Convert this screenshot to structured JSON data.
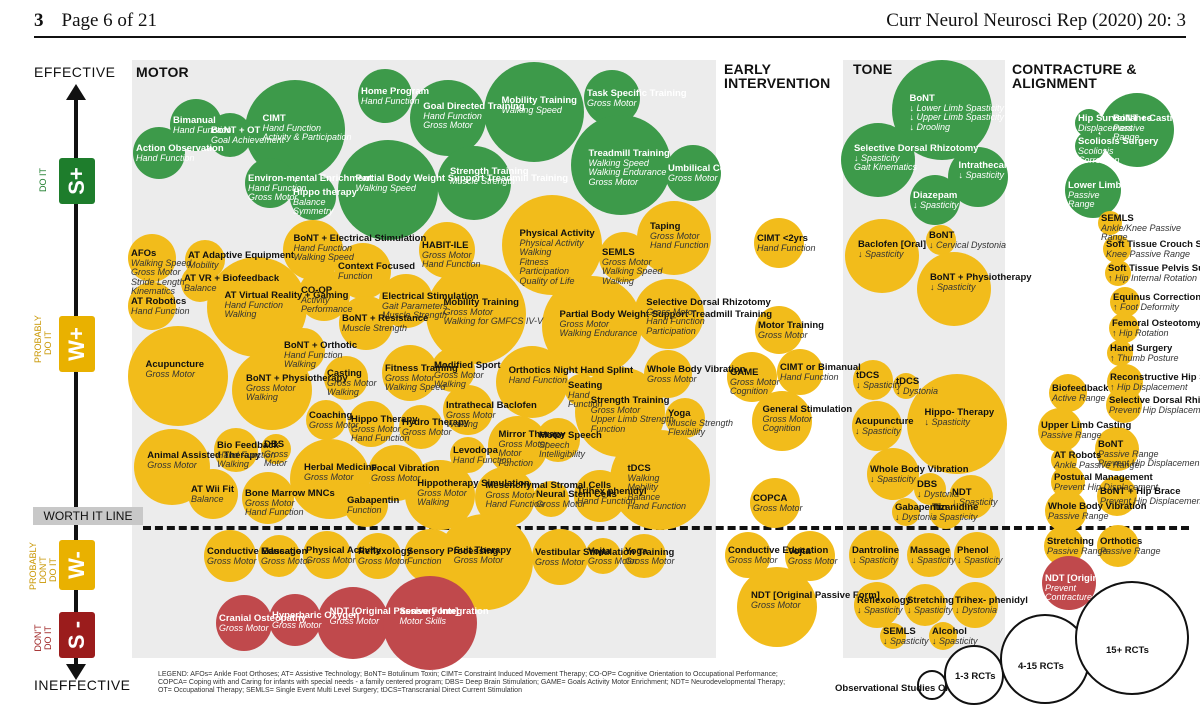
{
  "header": {
    "page_num": "3",
    "page_label": "Page 6 of 21",
    "journal": "Curr Neurol Neurosci Rep (2020) 20: 3"
  },
  "axis": {
    "top": "EFFECTIVE",
    "bottom": "INEFFECTIVE"
  },
  "ratings": [
    {
      "badge": "S+",
      "cat": "DO IT",
      "color": "#1e7d2c"
    },
    {
      "badge": "W+",
      "cat": "PROBABLY DO IT",
      "color": "#e9b100"
    },
    {
      "badge": "W-",
      "cat": "PROBABLY DON'T DO IT",
      "color": "#e9b100"
    },
    {
      "badge": "S -",
      "cat": "DON'T DO IT",
      "color": "#9b1c1c"
    }
  ],
  "worth_line": "WORTH IT LINE",
  "sections": {
    "motor": "MOTOR",
    "early": "EARLY INTERVENTION",
    "tone": "TONE",
    "contracture": "CONTRACTURE & ALIGNMENT"
  },
  "size_legend": {
    "obs": "Observational Studies ONLY",
    "r1": "1-3 RCTs",
    "r2": "4-15 RCTs",
    "r3": "15+ RCTs"
  },
  "legend": "LEGEND: AFOs= Ankle Foot Orthoses; AT= Assistive Technology; BoNT= Botulinum Toxin; CIMT= Constraint Induced Movement Therapy; CO-OP= Cognitive Orientation to Occupational Performance; COPCA= Coping with and Caring for infants with special needs - a family centered program; DBS= Deep Brain Stimulation; GAME= Goals Activity Motor Enrichment; NDT= Neurodevelopmental Therapy; OT= Occupational Therapy; SEMLS= Single Event Multi Level Surgery; tDCS=Transcranial Direct Current Stimulation",
  "interventions": [
    {
      "title": "Action Observation",
      "sub": "Hand Function",
      "color": "g"
    },
    {
      "title": "Bimanual",
      "sub": "Hand Function",
      "color": "g"
    },
    {
      "title": "BoNT + OT",
      "sub": "Goal Achievement",
      "color": "g"
    },
    {
      "title": "CIMT",
      "sub": "Hand Function\nActivity & Participation",
      "color": "g"
    },
    {
      "title": "Home Program",
      "sub": "Hand Function",
      "color": "g"
    },
    {
      "title": "Goal Directed Training",
      "sub": "Hand Function\nGross Motor",
      "color": "g"
    },
    {
      "title": "Mobility Training",
      "sub": "Walking Speed",
      "color": "g"
    },
    {
      "title": "Task Specific Training",
      "sub": "Gross Motor",
      "color": "g"
    },
    {
      "title": "Environ-mental Enrichment",
      "sub": "Hand Function\nGross Motor",
      "color": "g"
    },
    {
      "title": "Hippo therapy",
      "sub": "Balance\nSymmetry",
      "color": "g"
    },
    {
      "title": "Partial Body Weight Support Treadmill Training",
      "sub": "Walking Speed",
      "color": "g"
    },
    {
      "title": "Strength Training",
      "sub": "Muscle Strength",
      "color": "g"
    },
    {
      "title": "Treadmill Training",
      "sub": "Walking Speed\nWalking Endurance\nGross Motor",
      "color": "g"
    },
    {
      "title": "Umbilical Cord Blood",
      "sub": "Gross Motor",
      "color": "g"
    },
    {
      "title": "AFOs",
      "sub": "Walking Speed\nGross Motor\nStride Length\nKinematics",
      "color": "y"
    },
    {
      "title": "AT Adaptive Equipment",
      "sub": "Mobility",
      "color": "y"
    },
    {
      "title": "AT VR + Biofeedback",
      "sub": "Balance",
      "color": "y"
    },
    {
      "title": "AT Robotics",
      "sub": "Hand Function",
      "color": "y"
    },
    {
      "title": "AT Virtual Reality + Gaming",
      "sub": "Hand Function\nWalking",
      "color": "y"
    },
    {
      "title": "BoNT + Electrical Stimulation",
      "sub": "Hand Function\nWalking Speed",
      "color": "y"
    },
    {
      "title": "Context Focused",
      "sub": "Function",
      "color": "y"
    },
    {
      "title": "HABIT-ILE",
      "sub": "Gross Motor\nHand Function",
      "color": "y"
    },
    {
      "title": "Physical Activity",
      "sub": "Physical Activity\nWalking\nFitness\nParticipation\nQuality of Life",
      "color": "y"
    },
    {
      "title": "SEMLS",
      "sub": "Gross Motor\nWalking Speed\nWalking",
      "color": "y"
    },
    {
      "title": "Taping",
      "sub": "Gross Motor\nHand Function",
      "color": "y"
    },
    {
      "title": "CO-OP",
      "sub": "Activity\nPerformance",
      "color": "y"
    },
    {
      "title": "Electrical Stimulation",
      "sub": "Gait Parameters\nMuscle Strength",
      "color": "y"
    },
    {
      "title": "BoNT + Resistance",
      "sub": "Muscle Strength",
      "color": "y"
    },
    {
      "title": "Mobility Training",
      "sub": "Gross Motor\nWalking for GMFCS IV-V",
      "color": "y"
    },
    {
      "title": "Partial Body Weight Support Treadmill Training",
      "sub": "Gross Motor\nWalking Endurance",
      "color": "y"
    },
    {
      "title": "Selective Dorsal Rhizotomy",
      "sub": "Gross Motor\nHand Function\nParticipation",
      "color": "y"
    },
    {
      "title": "BoNT + Orthotic",
      "sub": "Hand Function\nWalking",
      "color": "y"
    },
    {
      "title": "Acupuncture",
      "sub": "Gross Motor",
      "color": "y"
    },
    {
      "title": "BoNT + Physiotherapy",
      "sub": "Gross Motor\nWalking",
      "color": "y"
    },
    {
      "title": "Casting",
      "sub": "Gross Motor\nWalking",
      "color": "y"
    },
    {
      "title": "Fitness Training",
      "sub": "Gross Motor\nWalking Speed",
      "color": "y"
    },
    {
      "title": "Modified Sport",
      "sub": "Gross Motor\nWalking",
      "color": "y"
    },
    {
      "title": "Orthotics Night Hand Splint",
      "sub": "Hand Function",
      "color": "y"
    },
    {
      "title": "Whole Body Vibration",
      "sub": "Gross Motor",
      "color": "y"
    },
    {
      "title": "Seating",
      "sub": "Hand\nFunction",
      "color": "y"
    },
    {
      "title": "Coaching",
      "sub": "Gross Motor",
      "color": "y"
    },
    {
      "title": "Hippo Therapy",
      "sub": "Gross Motor\nHand Function",
      "color": "y"
    },
    {
      "title": "Hydro Therapy",
      "sub": "Gross Motor",
      "color": "y"
    },
    {
      "title": "Intrathecal Baclofen",
      "sub": "Gross Motor\nWalking",
      "color": "y"
    },
    {
      "title": "Strength Training",
      "sub": "Gross Motor\nUpper Limb Strength\nFunction",
      "color": "y"
    },
    {
      "title": "Yoga",
      "sub": "Muscle Strength\nFlexibility",
      "color": "y"
    },
    {
      "title": "Animal Assisted Therapy",
      "sub": "Gross Motor",
      "color": "y"
    },
    {
      "title": "Bio Feedback",
      "sub": "Hand Function\nWalking",
      "color": "y"
    },
    {
      "title": "DBS",
      "sub": "Gross\nMotor",
      "color": "y"
    },
    {
      "title": "Mirror Therapy",
      "sub": "Gross Motor\nMotor\nFunction",
      "color": "y"
    },
    {
      "title": "Motor Speech",
      "sub": "Speech\nIntelligibility",
      "color": "y"
    },
    {
      "title": "Levodopa",
      "sub": "Hand Function",
      "color": "y"
    },
    {
      "title": "Herbal Medicine",
      "sub": "Gross Motor",
      "color": "y"
    },
    {
      "title": "Focal Vibration",
      "sub": "Gross Motor",
      "color": "y"
    },
    {
      "title": "tDCS",
      "sub": "Walking\nMobility\nBalance\nHand Function",
      "color": "y"
    },
    {
      "title": "AT Wii Fit",
      "sub": "Balance",
      "color": "y"
    },
    {
      "title": "Bone Marrow MNCs",
      "sub": "Gross Motor\nHand Function",
      "color": "y"
    },
    {
      "title": "Gabapentin",
      "sub": "Function",
      "color": "y"
    },
    {
      "title": "Hippotherapy Simulation",
      "sub": "Gross Motor\nWalking",
      "color": "y"
    },
    {
      "title": "Mesenchymal Stromal Cells",
      "sub": "Gross Motor\nHand Function",
      "color": "y"
    },
    {
      "title": "Neural Stem Cells",
      "sub": "Gross Motor",
      "color": "y"
    },
    {
      "title": "Trihex phenidyl",
      "sub": "Hand Function",
      "color": "y"
    },
    {
      "title": "Conductive Education",
      "sub": "Gross Motor",
      "color": "y"
    },
    {
      "title": "Massage",
      "sub": "Gross Motor",
      "color": "y"
    },
    {
      "title": "Physical Activity",
      "sub": "Gross Motor",
      "color": "y"
    },
    {
      "title": "Reflexology",
      "sub": "Gross Motor",
      "color": "y"
    },
    {
      "title": "Sensory Processing",
      "sub": "Function",
      "color": "y"
    },
    {
      "title": "Suit Therapy",
      "sub": "Gross Motor",
      "color": "y"
    },
    {
      "title": "Vestibular Stimulation Training",
      "sub": "Gross Motor",
      "color": "y"
    },
    {
      "title": "Vojta",
      "sub": "Gross Motor",
      "color": "y"
    },
    {
      "title": "Yoga",
      "sub": "Gross Motor",
      "color": "y"
    },
    {
      "title": "Cranial Osteopathy",
      "sub": "Gross Motor",
      "color": "r"
    },
    {
      "title": "Hyperbaric Oxygen",
      "sub": "Gross Motor",
      "color": "r"
    },
    {
      "title": "NDT [Original Passive Form]",
      "sub": "Gross Motor",
      "color": "r"
    },
    {
      "title": "Sensory Integration",
      "sub": "Motor Skills",
      "color": "r"
    },
    {
      "title": "CIMT <2yrs",
      "sub": "Hand Function",
      "color": "y"
    },
    {
      "title": "Motor Training",
      "sub": "Gross Motor",
      "color": "y"
    },
    {
      "title": "GAME",
      "sub": "Gross Motor\nCognition",
      "color": "y"
    },
    {
      "title": "CIMT or Bimanual",
      "sub": "Hand Function",
      "color": "y"
    },
    {
      "title": "General Stimulation",
      "sub": "Gross Motor\nCognition",
      "color": "y"
    },
    {
      "title": "COPCA",
      "sub": "Gross Motor",
      "color": "y"
    },
    {
      "title": "Conductive Education",
      "sub": "Gross Motor",
      "color": "y"
    },
    {
      "title": "Vojta",
      "sub": "Gross Motor",
      "color": "y"
    },
    {
      "title": "NDT [Original Passive Form]",
      "sub": "Gross Motor",
      "color": "y"
    },
    {
      "title": "BoNT",
      "sub": "↓ Lower Limb Spasticity\n↓ Upper Limb Spasticity\n↓ Drooling",
      "color": "g"
    },
    {
      "title": "Selective Dorsal Rhizotomy",
      "sub": "↓ Spasticity\nGait Kinematics",
      "color": "g"
    },
    {
      "title": "Intrathecal Baclofen",
      "sub": "↓ Spasticity",
      "color": "g"
    },
    {
      "title": "Diazepam",
      "sub": "↓ Spasticity",
      "color": "g"
    },
    {
      "title": "Baclofen [Oral]",
      "sub": "↓ Spasticity",
      "color": "y"
    },
    {
      "title": "BoNT",
      "sub": "↓ Cervical Dystonia",
      "color": "y"
    },
    {
      "title": "BoNT + Physiotherapy",
      "sub": "↓ Spasticity",
      "color": "y"
    },
    {
      "title": "tDCS",
      "sub": "↓ Spasticity",
      "color": "y"
    },
    {
      "title": "tDCS",
      "sub": "↓ Dystonia",
      "color": "y"
    },
    {
      "title": "Hippo- Therapy",
      "sub": "↓ Spasticity",
      "color": "y"
    },
    {
      "title": "Acupuncture",
      "sub": "↓ Spasticity",
      "color": "y"
    },
    {
      "title": "Whole Body Vibration",
      "sub": "↓ Spasticity",
      "color": "y"
    },
    {
      "title": "DBS",
      "sub": "↓ Dystonia",
      "color": "y"
    },
    {
      "title": "NDT",
      "sub": "↓ Spasticity",
      "color": "y"
    },
    {
      "title": "Gabapentin",
      "sub": "↓ Dystonia",
      "color": "y"
    },
    {
      "title": "Tizanidine",
      "sub": "↓ Spasticity",
      "color": "y"
    },
    {
      "title": "Dantroline",
      "sub": "↓ Spasticity",
      "color": "y"
    },
    {
      "title": "Massage",
      "sub": "↓ Spasticity",
      "color": "y"
    },
    {
      "title": "Phenol",
      "sub": "↓ Spasticity",
      "color": "y"
    },
    {
      "title": "Reflexology",
      "sub": "↓ Spasticity",
      "color": "y"
    },
    {
      "title": "Stretching",
      "sub": "↓ Spasticity",
      "color": "y"
    },
    {
      "title": "Trihex- phenidyl",
      "sub": "↓ Dystonia",
      "color": "y"
    },
    {
      "title": "SEMLS",
      "sub": "↓ Spasticity",
      "color": "y"
    },
    {
      "title": "Alcohol",
      "sub": "↓ Spasticity",
      "color": "y"
    },
    {
      "title": "Hip Surveillance",
      "sub": "Displacement",
      "color": "g"
    },
    {
      "title": "Scoliosis Surgery",
      "sub": "Scoliosis\nCorrection",
      "color": "g"
    },
    {
      "title": "BoNT + Casting",
      "sub": "Passive\nRange",
      "color": "g"
    },
    {
      "title": "Lower Limb Casting",
      "sub": "Passive\nRange",
      "color": "g"
    },
    {
      "title": "SEMLS",
      "sub": "Ankle/Knee Passive\nRange",
      "color": "y"
    },
    {
      "title": "Soft Tissue Crouch Surgery",
      "sub": "Knee Passive Range",
      "color": "y"
    },
    {
      "title": "Soft Tissue Pelvis Surgery",
      "sub": "↑ Hip Internal Rotation",
      "color": "y"
    },
    {
      "title": "Equinus Correction",
      "sub": "↑ Foot Deformity",
      "color": "y"
    },
    {
      "title": "Femoral Osteotomy",
      "sub": "↑ Hip Rotation",
      "color": "y"
    },
    {
      "title": "Hand Surgery",
      "sub": "↑ Thumb Posture",
      "color": "y"
    },
    {
      "title": "Reconstructive Hip Surgery",
      "sub": "↑ Hip Displacement",
      "color": "y"
    },
    {
      "title": "Biofeedback",
      "sub": "Active Range",
      "color": "y"
    },
    {
      "title": "Selective Dorsal Rhizotomy",
      "sub": "Prevent Hip Displacement",
      "color": "y"
    },
    {
      "title": "Upper Limb Casting",
      "sub": "Passive Range",
      "color": "y"
    },
    {
      "title": "BoNT",
      "sub": "Passive Range\nPrevent Hip Displacement",
      "color": "y"
    },
    {
      "title": "AT Robots",
      "sub": "Ankle Passive Range",
      "color": "y"
    },
    {
      "title": "Postural Management",
      "sub": "Prevent Hip Displacement",
      "color": "y"
    },
    {
      "title": "BoNT + Hip Brace",
      "sub": "Prevent Hip Displacement",
      "color": "y"
    },
    {
      "title": "Whole Body Vibration",
      "sub": "Passive Range",
      "color": "y"
    },
    {
      "title": "Stretching",
      "sub": "Passive Range",
      "color": "y"
    },
    {
      "title": "Orthotics",
      "sub": "Passive Range",
      "color": "y"
    },
    {
      "title": "NDT [Original Form]",
      "sub": "Prevent\nContracture",
      "color": "r"
    }
  ]
}
